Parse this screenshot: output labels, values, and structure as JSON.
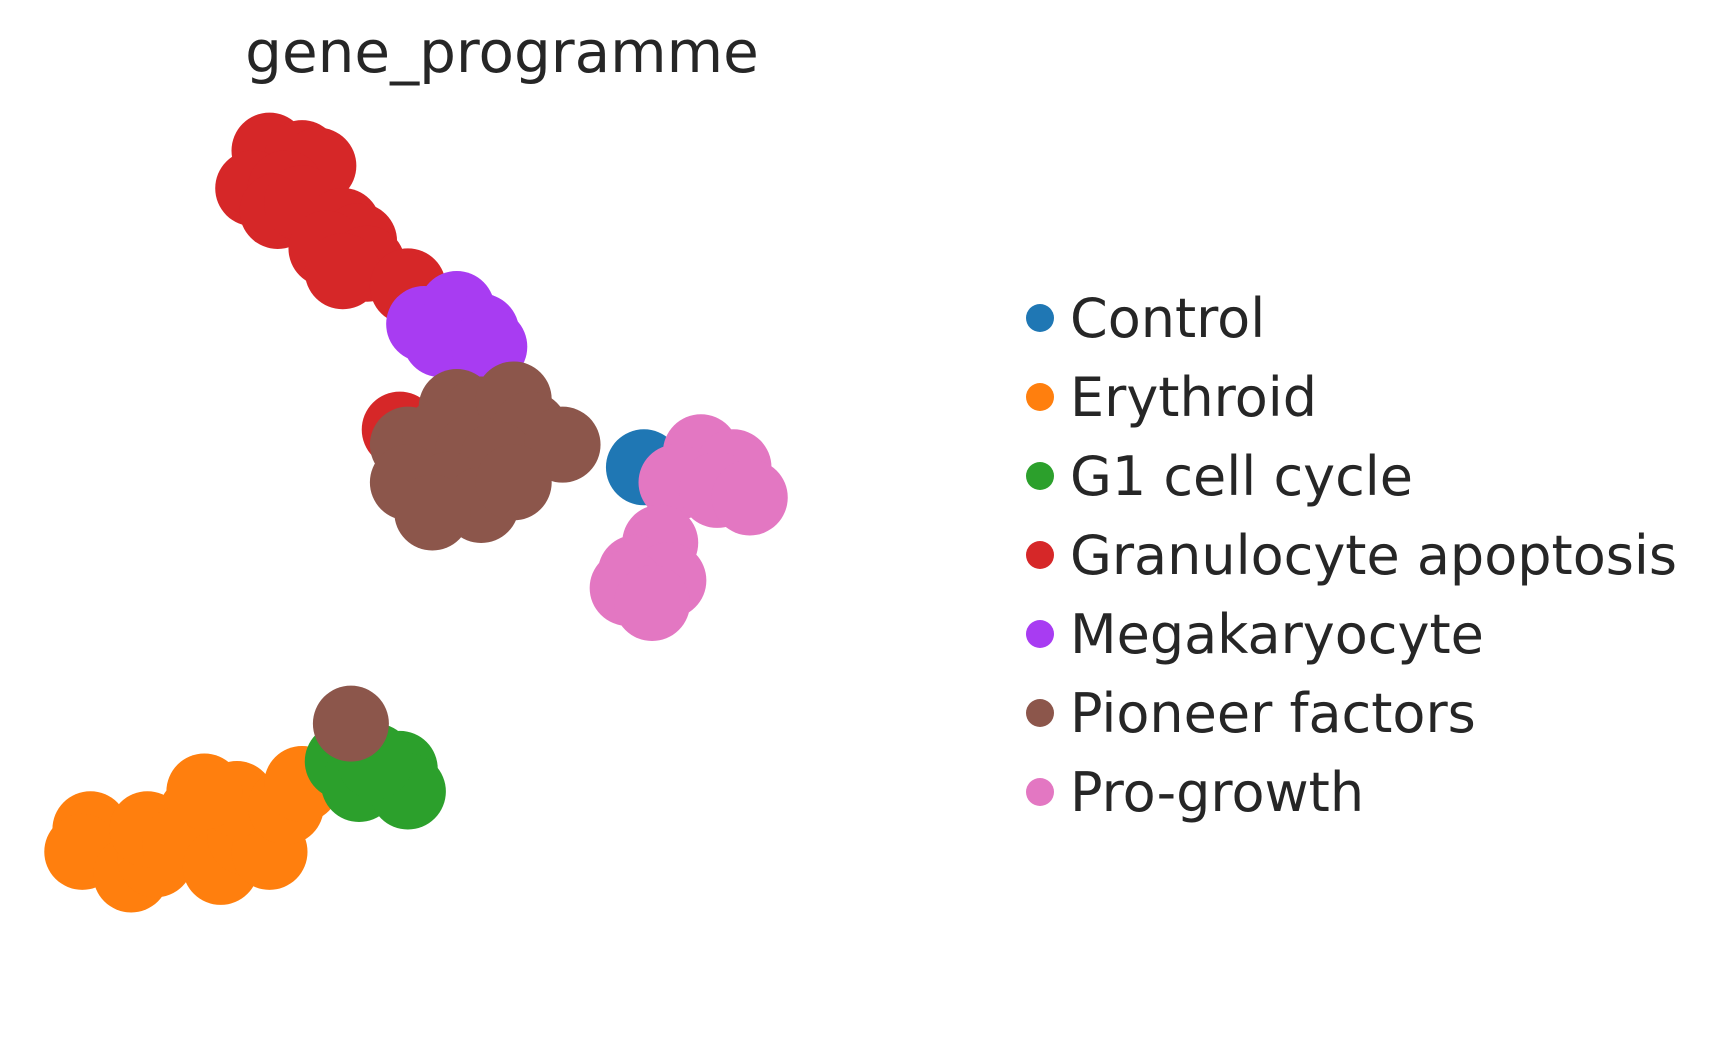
{
  "chart_data": {
    "type": "scatter",
    "title": "gene_programme",
    "xlabel": "",
    "ylabel": "",
    "axes_visible": false,
    "grid": false,
    "legend_placement": "right",
    "series": [
      {
        "name": "Control",
        "color": "#1f77b4",
        "points": [
          [
            0.71,
            0.55
          ]
        ]
      },
      {
        "name": "Erythroid",
        "color": "#ff7f0e",
        "points": [
          [
            0.03,
            0.07
          ],
          [
            0.02,
            0.04
          ],
          [
            0.08,
            0.01
          ],
          [
            0.11,
            0.03
          ],
          [
            0.1,
            0.07
          ],
          [
            0.16,
            0.09
          ],
          [
            0.14,
            0.05
          ],
          [
            0.19,
            0.02
          ],
          [
            0.22,
            0.06
          ],
          [
            0.25,
            0.04
          ],
          [
            0.21,
            0.11
          ],
          [
            0.27,
            0.1
          ],
          [
            0.29,
            0.13
          ],
          [
            0.17,
            0.12
          ]
        ]
      },
      {
        "name": "G1 cell cycle",
        "color": "#2ca02c",
        "points": [
          [
            0.34,
            0.16
          ],
          [
            0.36,
            0.13
          ],
          [
            0.41,
            0.15
          ],
          [
            0.42,
            0.12
          ],
          [
            0.38,
            0.16
          ]
        ]
      },
      {
        "name": "Granulocyte apoptosis",
        "color": "#d62728",
        "points": [
          [
            0.25,
            0.97
          ],
          [
            0.29,
            0.96
          ],
          [
            0.31,
            0.95
          ],
          [
            0.23,
            0.92
          ],
          [
            0.27,
            0.92
          ],
          [
            0.26,
            0.89
          ],
          [
            0.29,
            0.9
          ],
          [
            0.34,
            0.87
          ],
          [
            0.36,
            0.85
          ],
          [
            0.32,
            0.84
          ],
          [
            0.37,
            0.82
          ],
          [
            0.34,
            0.81
          ],
          [
            0.42,
            0.79
          ],
          [
            0.41,
            0.6
          ]
        ]
      },
      {
        "name": "Megakaryocyte",
        "color": "#a83cf2",
        "points": [
          [
            0.44,
            0.74
          ],
          [
            0.48,
            0.76
          ],
          [
            0.51,
            0.73
          ],
          [
            0.46,
            0.72
          ],
          [
            0.52,
            0.71
          ]
        ]
      },
      {
        "name": "Pioneer factors",
        "color": "#8c564b",
        "points": [
          [
            0.48,
            0.63
          ],
          [
            0.51,
            0.62
          ],
          [
            0.55,
            0.64
          ],
          [
            0.57,
            0.6
          ],
          [
            0.42,
            0.58
          ],
          [
            0.46,
            0.59
          ],
          [
            0.5,
            0.57
          ],
          [
            0.53,
            0.56
          ],
          [
            0.61,
            0.58
          ],
          [
            0.42,
            0.53
          ],
          [
            0.47,
            0.52
          ],
          [
            0.51,
            0.5
          ],
          [
            0.55,
            0.53
          ],
          [
            0.45,
            0.49
          ],
          [
            0.35,
            0.21
          ]
        ]
      },
      {
        "name": "Pro-growth",
        "color": "#e377c2",
        "points": [
          [
            0.78,
            0.57
          ],
          [
            0.82,
            0.55
          ],
          [
            0.75,
            0.53
          ],
          [
            0.8,
            0.52
          ],
          [
            0.84,
            0.51
          ],
          [
            0.73,
            0.45
          ],
          [
            0.7,
            0.41
          ],
          [
            0.74,
            0.4
          ],
          [
            0.69,
            0.39
          ],
          [
            0.72,
            0.37
          ]
        ]
      }
    ]
  }
}
